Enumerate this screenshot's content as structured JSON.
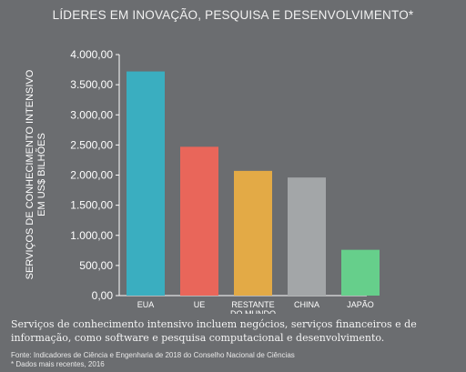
{
  "chart_data": {
    "type": "bar",
    "title": "LÍDERES EM INOVAÇÃO, PESQUISA E DESENVOLVIMENTO*",
    "ylabel_lines": [
      "SERVIÇOS DE CONHECIMENTO INTENSIVO",
      "EM US$ BILHÕES"
    ],
    "xlabel": "",
    "ylim": [
      0,
      4000
    ],
    "yticks": [
      "0,00",
      "500,00",
      "1.000,00",
      "1.500,00",
      "2.000,00",
      "2.500,00",
      "3.000,00",
      "3.500,00",
      "4.000,00"
    ],
    "categories": [
      "EUA",
      "UE",
      "RESTANTE DO MUNDO",
      "CHINA",
      "JAPÃO"
    ],
    "category_lines": [
      [
        "EUA"
      ],
      [
        "UE"
      ],
      [
        "RESTANTE",
        "DO MUNDO"
      ],
      [
        "CHINA"
      ],
      [
        "JAPÃO"
      ]
    ],
    "values": [
      3720,
      2470,
      2070,
      1960,
      760
    ],
    "colors": [
      "#3aaec0",
      "#e9665a",
      "#e3aa46",
      "#a3a6a8",
      "#66cf8b"
    ],
    "grid": false,
    "legend": "none"
  },
  "description": "Serviços de conhecimento intensivo incluem negócios, serviços financeiros e de informação, como software e pesquisa computacional e desenvolvimento.",
  "source": {
    "line1": "Fonte: Indicadores de Ciência e Engenharia de 2018 do Conselho Nacional de Ciências",
    "line2": "* Dados mais recentes, 2016"
  }
}
